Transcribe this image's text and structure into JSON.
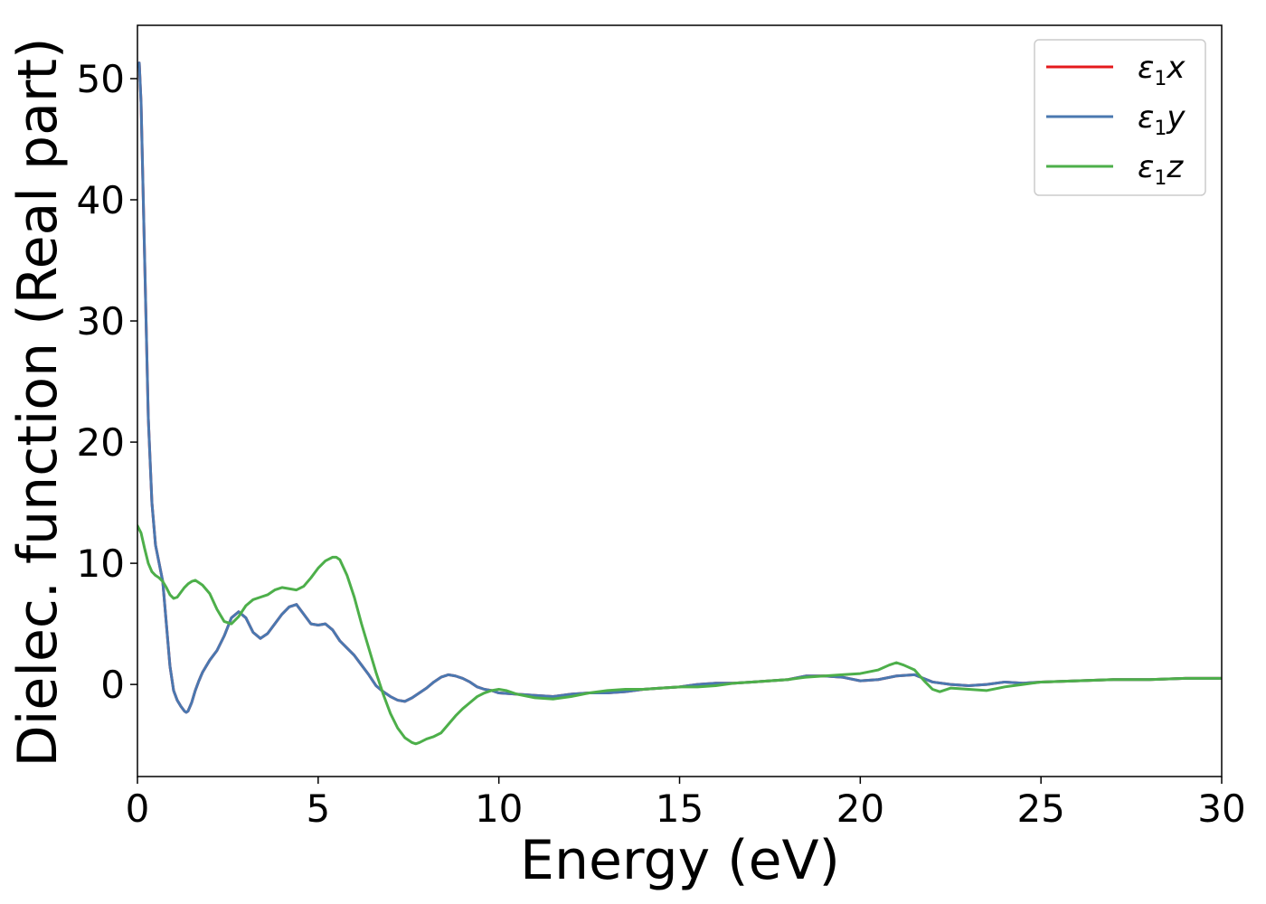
{
  "chart_data": {
    "type": "line",
    "xlabel": "Energy (eV)",
    "ylabel": "Dielec. function (Real part)",
    "xlim": [
      0,
      30
    ],
    "ylim": [
      -7.6,
      54.4
    ],
    "x_ticks": [
      0,
      5,
      10,
      15,
      20,
      25,
      30
    ],
    "y_ticks": [
      0,
      10,
      20,
      30,
      40,
      50
    ],
    "grid": false,
    "legend_placement": "top-right",
    "series": [
      {
        "name": "ε1x",
        "legend_symbol": "ε",
        "legend_sub": "1",
        "legend_var": "x",
        "color": "#e41a1c",
        "x": [
          0,
          0.05,
          0.1,
          0.2,
          0.3,
          0.4,
          0.5,
          0.6,
          0.7,
          0.8,
          0.9,
          1.0,
          1.1,
          1.2,
          1.3,
          1.35,
          1.4,
          1.5,
          1.6,
          1.7,
          1.8,
          2.0,
          2.2,
          2.4,
          2.6,
          2.8,
          3.0,
          3.2,
          3.4,
          3.6,
          3.8,
          4.0,
          4.2,
          4.4,
          4.6,
          4.8,
          5.0,
          5.2,
          5.4,
          5.6,
          5.8,
          6.0,
          6.2,
          6.4,
          6.6,
          6.8,
          7.0,
          7.2,
          7.4,
          7.6,
          7.8,
          8.0,
          8.2,
          8.4,
          8.6,
          8.8,
          9.0,
          9.2,
          9.4,
          9.6,
          9.8,
          10.0,
          10.5,
          11.0,
          11.5,
          12.0,
          12.5,
          13.0,
          13.5,
          14.0,
          14.5,
          15.0,
          15.5,
          16.0,
          16.5,
          17.0,
          17.5,
          18.0,
          18.5,
          19.0,
          19.5,
          20.0,
          20.5,
          21.0,
          21.5,
          22.0,
          22.5,
          23.0,
          23.5,
          24.0,
          24.5,
          25.0,
          26.0,
          27.0,
          28.0,
          29.0,
          30.0
        ],
        "y": [
          51.0,
          51.3,
          48.0,
          35.0,
          22.0,
          15.0,
          11.5,
          10.0,
          8.5,
          5.0,
          1.5,
          -0.5,
          -1.3,
          -1.8,
          -2.2,
          -2.3,
          -2.2,
          -1.5,
          -0.5,
          0.3,
          1.0,
          2.0,
          2.8,
          4.0,
          5.5,
          6.0,
          5.5,
          4.3,
          3.8,
          4.2,
          5.0,
          5.8,
          6.4,
          6.6,
          5.8,
          5.0,
          4.9,
          5.0,
          4.5,
          3.6,
          3.0,
          2.4,
          1.6,
          0.8,
          -0.1,
          -0.6,
          -1.0,
          -1.3,
          -1.4,
          -1.1,
          -0.7,
          -0.3,
          0.2,
          0.6,
          0.8,
          0.7,
          0.5,
          0.2,
          -0.2,
          -0.4,
          -0.5,
          -0.7,
          -0.8,
          -0.9,
          -1.0,
          -0.8,
          -0.7,
          -0.7,
          -0.6,
          -0.4,
          -0.3,
          -0.2,
          0.0,
          0.1,
          0.1,
          0.2,
          0.3,
          0.4,
          0.7,
          0.7,
          0.6,
          0.3,
          0.4,
          0.7,
          0.8,
          0.2,
          0.0,
          -0.1,
          0.0,
          0.2,
          0.1,
          0.2,
          0.3,
          0.4,
          0.4,
          0.5,
          0.5
        ]
      },
      {
        "name": "ε1y",
        "legend_symbol": "ε",
        "legend_sub": "1",
        "legend_var": "y",
        "color": "#4a78b0",
        "x": [
          0,
          0.05,
          0.1,
          0.2,
          0.3,
          0.4,
          0.5,
          0.6,
          0.7,
          0.8,
          0.9,
          1.0,
          1.1,
          1.2,
          1.3,
          1.35,
          1.4,
          1.5,
          1.6,
          1.7,
          1.8,
          2.0,
          2.2,
          2.4,
          2.6,
          2.8,
          3.0,
          3.2,
          3.4,
          3.6,
          3.8,
          4.0,
          4.2,
          4.4,
          4.6,
          4.8,
          5.0,
          5.2,
          5.4,
          5.6,
          5.8,
          6.0,
          6.2,
          6.4,
          6.6,
          6.8,
          7.0,
          7.2,
          7.4,
          7.6,
          7.8,
          8.0,
          8.2,
          8.4,
          8.6,
          8.8,
          9.0,
          9.2,
          9.4,
          9.6,
          9.8,
          10.0,
          10.5,
          11.0,
          11.5,
          12.0,
          12.5,
          13.0,
          13.5,
          14.0,
          14.5,
          15.0,
          15.5,
          16.0,
          16.5,
          17.0,
          17.5,
          18.0,
          18.5,
          19.0,
          19.5,
          20.0,
          20.5,
          21.0,
          21.5,
          22.0,
          22.5,
          23.0,
          23.5,
          24.0,
          24.5,
          25.0,
          26.0,
          27.0,
          28.0,
          29.0,
          30.0
        ],
        "y": [
          51.0,
          51.3,
          48.0,
          35.0,
          22.0,
          15.0,
          11.5,
          10.0,
          8.5,
          5.0,
          1.5,
          -0.5,
          -1.3,
          -1.8,
          -2.2,
          -2.3,
          -2.2,
          -1.5,
          -0.5,
          0.3,
          1.0,
          2.0,
          2.8,
          4.0,
          5.5,
          6.0,
          5.5,
          4.3,
          3.8,
          4.2,
          5.0,
          5.8,
          6.4,
          6.6,
          5.8,
          5.0,
          4.9,
          5.0,
          4.5,
          3.6,
          3.0,
          2.4,
          1.6,
          0.8,
          -0.1,
          -0.6,
          -1.0,
          -1.3,
          -1.4,
          -1.1,
          -0.7,
          -0.3,
          0.2,
          0.6,
          0.8,
          0.7,
          0.5,
          0.2,
          -0.2,
          -0.4,
          -0.5,
          -0.7,
          -0.8,
          -0.9,
          -1.0,
          -0.8,
          -0.7,
          -0.7,
          -0.6,
          -0.4,
          -0.3,
          -0.2,
          0.0,
          0.1,
          0.1,
          0.2,
          0.3,
          0.4,
          0.7,
          0.7,
          0.6,
          0.3,
          0.4,
          0.7,
          0.8,
          0.2,
          0.0,
          -0.1,
          0.0,
          0.2,
          0.1,
          0.2,
          0.3,
          0.4,
          0.4,
          0.5,
          0.5
        ]
      },
      {
        "name": "ε1z",
        "legend_symbol": "ε",
        "legend_sub": "1",
        "legend_var": "z",
        "color": "#4daf4a",
        "x": [
          0,
          0.1,
          0.2,
          0.3,
          0.4,
          0.5,
          0.6,
          0.7,
          0.8,
          0.9,
          1.0,
          1.1,
          1.2,
          1.3,
          1.4,
          1.5,
          1.6,
          1.7,
          1.8,
          2.0,
          2.2,
          2.4,
          2.6,
          2.8,
          3.0,
          3.2,
          3.4,
          3.6,
          3.8,
          4.0,
          4.2,
          4.4,
          4.6,
          4.8,
          5.0,
          5.2,
          5.4,
          5.5,
          5.6,
          5.8,
          6.0,
          6.2,
          6.4,
          6.6,
          6.8,
          7.0,
          7.2,
          7.4,
          7.6,
          7.7,
          7.8,
          8.0,
          8.2,
          8.4,
          8.6,
          8.8,
          9.0,
          9.2,
          9.4,
          9.6,
          9.8,
          10.0,
          10.2,
          10.5,
          11.0,
          11.5,
          12.0,
          12.5,
          13.0,
          13.5,
          14.0,
          14.5,
          15.0,
          15.5,
          16.0,
          16.5,
          17.0,
          17.5,
          18.0,
          18.5,
          19.0,
          19.5,
          20.0,
          20.5,
          20.8,
          21.0,
          21.2,
          21.5,
          21.8,
          22.0,
          22.2,
          22.5,
          23.0,
          23.5,
          24.0,
          24.5,
          25.0,
          26.0,
          27.0,
          28.0,
          29.0,
          30.0
        ],
        "y": [
          13.1,
          12.5,
          11.2,
          10.0,
          9.3,
          9.0,
          8.8,
          8.5,
          8.0,
          7.4,
          7.1,
          7.2,
          7.6,
          8.0,
          8.3,
          8.5,
          8.6,
          8.4,
          8.2,
          7.5,
          6.2,
          5.2,
          5.0,
          5.6,
          6.5,
          7.0,
          7.2,
          7.4,
          7.8,
          8.0,
          7.9,
          7.8,
          8.1,
          8.8,
          9.6,
          10.2,
          10.5,
          10.5,
          10.3,
          9.0,
          7.2,
          5.0,
          3.0,
          1.0,
          -0.8,
          -2.4,
          -3.6,
          -4.4,
          -4.8,
          -4.9,
          -4.8,
          -4.5,
          -4.3,
          -4.0,
          -3.3,
          -2.6,
          -2.0,
          -1.5,
          -1.0,
          -0.7,
          -0.5,
          -0.4,
          -0.5,
          -0.8,
          -1.1,
          -1.2,
          -1.0,
          -0.7,
          -0.5,
          -0.4,
          -0.4,
          -0.3,
          -0.2,
          -0.2,
          -0.1,
          0.1,
          0.2,
          0.3,
          0.4,
          0.6,
          0.7,
          0.8,
          0.9,
          1.2,
          1.6,
          1.8,
          1.6,
          1.2,
          0.2,
          -0.4,
          -0.6,
          -0.3,
          -0.4,
          -0.5,
          -0.2,
          0.0,
          0.2,
          0.3,
          0.4,
          0.4,
          0.5,
          0.5
        ]
      }
    ]
  }
}
